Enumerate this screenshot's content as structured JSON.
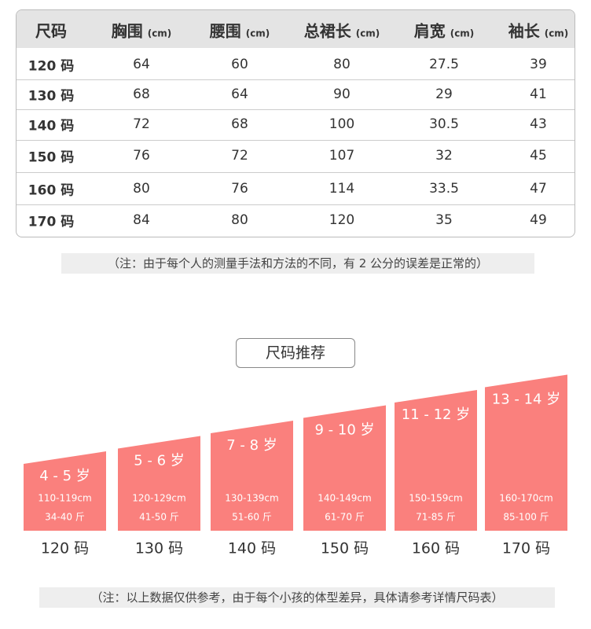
{
  "table": {
    "header": [
      {
        "label": "尺码"
      },
      {
        "label": "胸围",
        "unit": "(cm)"
      },
      {
        "label": "腰围",
        "unit": "(cm)"
      },
      {
        "label": "总裙长",
        "unit": "(cm)"
      },
      {
        "label": "肩宽",
        "unit": "(cm)"
      },
      {
        "label": "袖长",
        "unit": "(cm)"
      }
    ],
    "rows": [
      [
        "120 码",
        "64",
        "60",
        "80",
        "27.5",
        "39"
      ],
      [
        "130 码",
        "68",
        "64",
        "90",
        "29",
        "41"
      ],
      [
        "140 码",
        "72",
        "68",
        "100",
        "30.5",
        "43"
      ],
      [
        "150 码",
        "76",
        "72",
        "107",
        "32",
        "45"
      ],
      [
        "160 码",
        "80",
        "76",
        "114",
        "33.5",
        "47"
      ],
      [
        "170 码",
        "84",
        "80",
        "120",
        "35",
        "49"
      ]
    ]
  },
  "note1": "（注：由于每个人的测量手法和方法的不同，有 2 公分的误差是正常的）",
  "recommend": {
    "title": "尺码推荐",
    "items": [
      {
        "age": "4 - 5 岁",
        "height": "110-119cm",
        "weight": "34-40 斤",
        "size": "120 码"
      },
      {
        "age": "5 - 6 岁",
        "height": "120-129cm",
        "weight": "41-50 斤",
        "size": "130 码"
      },
      {
        "age": "7 - 8 岁",
        "height": "130-139cm",
        "weight": "51-60 斤",
        "size": "140 码"
      },
      {
        "age": "9 - 10 岁",
        "height": "140-149cm",
        "weight": "61-70 斤",
        "size": "150 码"
      },
      {
        "age": "11 - 12 岁",
        "height": "150-159cm",
        "weight": "71-85 斤",
        "size": "160 码"
      },
      {
        "age": "13 - 14 岁",
        "height": "160-170cm",
        "weight": "85-100 斤",
        "size": "170 码"
      }
    ]
  },
  "note2": "（注：以上数据仅供参考，由于每个小孩的体型差异，具体请参考详情尺码表）"
}
